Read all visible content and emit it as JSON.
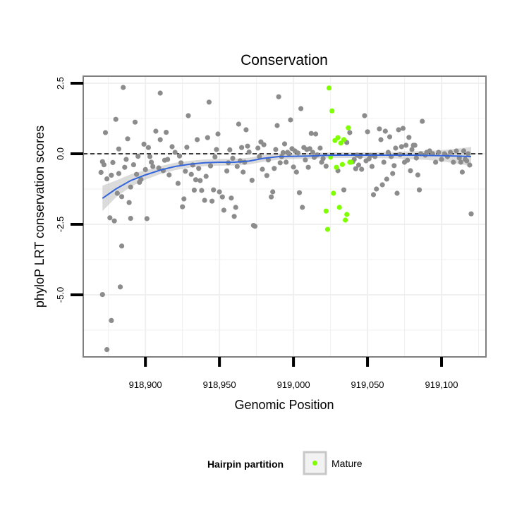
{
  "chart_data": {
    "type": "scatter",
    "title": "Conservation",
    "xlabel": "Genomic Position",
    "ylabel": "phyloP LRT conservation scores",
    "xlim": [
      918858,
      919130
    ],
    "ylim": [
      -7.2,
      2.75
    ],
    "x_ticks": [
      918900,
      918950,
      919000,
      919050,
      919100
    ],
    "x_tick_labels": [
      "918,900",
      "918,950",
      "919,000",
      "919,050",
      "919,100"
    ],
    "y_ticks": [
      -5.0,
      -2.5,
      0.0,
      2.5
    ],
    "y_tick_labels": [
      "-5.0",
      "-2.5",
      "0.0",
      "2.5"
    ],
    "reference_line": {
      "y": 0,
      "style": "dashed",
      "color": "#000000"
    },
    "grid": true,
    "legend": {
      "title": "Hairpin partition",
      "position": "bottom",
      "entries": [
        "Mature"
      ]
    },
    "colors": {
      "other": "#8c8c8c",
      "mature": "#7fff00",
      "smooth_line": "#3366dd",
      "ribbon": "#bdbdbd",
      "panel_border": "#7f7f7f",
      "grid": "#f0f0f0"
    },
    "series": [
      {
        "name": "",
        "color": "#8c8c8c",
        "points": [
          [
            918871,
            -4.99
          ],
          [
            918874,
            -6.94
          ],
          [
            918877,
            -5.91
          ],
          [
            918883,
            -4.72
          ],
          [
            918884,
            -3.27
          ],
          [
            918870,
            -0.66
          ],
          [
            918871,
            -0.28
          ],
          [
            918872,
            -0.39
          ],
          [
            918873,
            0.75
          ],
          [
            918874,
            -0.89
          ],
          [
            918876,
            -2.27
          ],
          [
            918877,
            -0.76
          ],
          [
            918878,
            -0.31
          ],
          [
            918879,
            -2.38
          ],
          [
            918880,
            1.22
          ],
          [
            918881,
            -1.4
          ],
          [
            918882,
            -0.7
          ],
          [
            918882,
            0.17
          ],
          [
            918884,
            -1.52
          ],
          [
            918885,
            2.35
          ],
          [
            918886,
            -0.48
          ],
          [
            918887,
            -0.2
          ],
          [
            918888,
            0.53
          ],
          [
            918889,
            -1.73
          ],
          [
            918890,
            -2.29
          ],
          [
            918890,
            -1.18
          ],
          [
            918892,
            -0.39
          ],
          [
            918893,
            1.12
          ],
          [
            918894,
            -0.73
          ],
          [
            918895,
            -0.09
          ],
          [
            918896,
            -1.01
          ],
          [
            918897,
            -0.91
          ],
          [
            918899,
            0.34
          ],
          [
            918900,
            -0.56
          ],
          [
            918901,
            -2.3
          ],
          [
            918902,
            0.22
          ],
          [
            918903,
            -0.1
          ],
          [
            918904,
            -0.3
          ],
          [
            918905,
            -0.45
          ],
          [
            918907,
            0.8
          ],
          [
            918909,
            -0.5
          ],
          [
            918910,
            0.5
          ],
          [
            918910,
            2.15
          ],
          [
            918912,
            -0.6
          ],
          [
            918913,
            -0.23
          ],
          [
            918914,
            0.76
          ],
          [
            918915,
            -0.2
          ],
          [
            918916,
            -0.75
          ],
          [
            918918,
            0.25
          ],
          [
            918920,
            0.05
          ],
          [
            918922,
            -1.05
          ],
          [
            918923,
            -0.08
          ],
          [
            918924,
            -0.32
          ],
          [
            918925,
            -1.88
          ],
          [
            918926,
            -1.6
          ],
          [
            918927,
            -0.62
          ],
          [
            918928,
            0.23
          ],
          [
            918929,
            1.35
          ],
          [
            918931,
            -0.73
          ],
          [
            918932,
            -0.4
          ],
          [
            918933,
            -1.29
          ],
          [
            918934,
            -0.92
          ],
          [
            918935,
            0.5
          ],
          [
            918936,
            -0.52
          ],
          [
            918937,
            -0.95
          ],
          [
            918938,
            -1.3
          ],
          [
            918940,
            -1.65
          ],
          [
            918941,
            -0.8
          ],
          [
            918942,
            0.57
          ],
          [
            918943,
            1.83
          ],
          [
            918944,
            -0.43
          ],
          [
            918945,
            -1.68
          ],
          [
            918946,
            -1.28
          ],
          [
            918947,
            -0.11
          ],
          [
            918948,
            0.15
          ],
          [
            918949,
            0.7
          ],
          [
            918950,
            -1.35
          ],
          [
            918952,
            -1.53
          ],
          [
            918953,
            -2.0
          ],
          [
            918955,
            -0.61
          ],
          [
            918956,
            -0.32
          ],
          [
            918957,
            0.14
          ],
          [
            918958,
            -1.57
          ],
          [
            918959,
            -0.16
          ],
          [
            918960,
            -2.22
          ],
          [
            918961,
            -1.9
          ],
          [
            918962,
            -0.45
          ],
          [
            918963,
            1.05
          ],
          [
            918964,
            -0.25
          ],
          [
            918965,
            0.22
          ],
          [
            918966,
            -0.65
          ],
          [
            918967,
            -0.3
          ],
          [
            918968,
            0.85
          ],
          [
            918969,
            0.27
          ],
          [
            918970,
            0.06
          ],
          [
            918972,
            -0.94
          ],
          [
            918973,
            -2.54
          ],
          [
            918974,
            -2.57
          ],
          [
            918976,
            0.2
          ],
          [
            918977,
            -0.1
          ],
          [
            918978,
            0.42
          ],
          [
            918979,
            -0.55
          ],
          [
            918980,
            0.32
          ],
          [
            918982,
            -0.77
          ],
          [
            918983,
            -0.22
          ],
          [
            918985,
            -1.53
          ],
          [
            918986,
            -1.35
          ],
          [
            918987,
            -0.52
          ],
          [
            918988,
            0.15
          ],
          [
            918989,
            1.0
          ],
          [
            918990,
            2.02
          ],
          [
            918991,
            -0.32
          ],
          [
            918992,
            -0.1
          ],
          [
            918993,
            0.04
          ],
          [
            918994,
            0.35
          ],
          [
            918995,
            -0.3
          ],
          [
            918996,
            0.05
          ],
          [
            918997,
            0.0
          ],
          [
            918998,
            1.2
          ],
          [
            918999,
            0.18
          ],
          [
            919000,
            -0.47
          ],
          [
            919001,
            0.1
          ],
          [
            919002,
            -0.65
          ],
          [
            919003,
            0.03
          ],
          [
            919004,
            -1.38
          ],
          [
            919005,
            1.6
          ],
          [
            919006,
            -1.9
          ],
          [
            919007,
            0.22
          ],
          [
            919008,
            -0.22
          ],
          [
            919009,
            0.15
          ],
          [
            919010,
            -0.48
          ],
          [
            919011,
            0.18
          ],
          [
            919012,
            0.72
          ],
          [
            919013,
            0.05
          ],
          [
            919014,
            -0.13
          ],
          [
            919015,
            0.7
          ],
          [
            919016,
            -0.04
          ],
          [
            919018,
            0.2
          ],
          [
            919019,
            -0.3
          ],
          [
            919020,
            -0.17
          ],
          [
            919022,
            -0.44
          ],
          [
            919030,
            -0.6
          ],
          [
            919034,
            -1.28
          ],
          [
            919036,
            0.4
          ],
          [
            919038,
            0.75
          ],
          [
            919040,
            -0.28
          ],
          [
            919041,
            -0.2
          ],
          [
            919042,
            -0.53
          ],
          [
            919043,
            -0.05
          ],
          [
            919044,
            -0.4
          ],
          [
            919045,
            -0.1
          ],
          [
            919046,
            -0.55
          ],
          [
            919048,
            1.35
          ],
          [
            919049,
            -0.25
          ],
          [
            919050,
            0.78
          ],
          [
            919051,
            -0.18
          ],
          [
            919052,
            -0.06
          ],
          [
            919053,
            -0.45
          ],
          [
            919054,
            -1.45
          ],
          [
            919055,
            -0.1
          ],
          [
            919056,
            -1.25
          ],
          [
            919058,
            0.88
          ],
          [
            919059,
            0.5
          ],
          [
            919060,
            -1.1
          ],
          [
            919061,
            -0.3
          ],
          [
            919062,
            0.8
          ],
          [
            919063,
            -0.9
          ],
          [
            919064,
            0.05
          ],
          [
            919065,
            0.6
          ],
          [
            919066,
            -0.1
          ],
          [
            919067,
            -0.7
          ],
          [
            919068,
            -0.42
          ],
          [
            919069,
            0.2
          ],
          [
            919070,
            -1.4
          ],
          [
            919071,
            0.85
          ],
          [
            919072,
            -0.03
          ],
          [
            919073,
            0.25
          ],
          [
            919074,
            0.9
          ],
          [
            919075,
            -0.3
          ],
          [
            919076,
            0.3
          ],
          [
            919077,
            -0.23
          ],
          [
            919078,
            0.58
          ],
          [
            919079,
            -0.6
          ],
          [
            919080,
            0.15
          ],
          [
            919081,
            0.3
          ],
          [
            919082,
            0.3
          ],
          [
            919083,
            -0.15
          ],
          [
            919084,
            -0.75
          ],
          [
            919085,
            -1.28
          ],
          [
            919086,
            0.0
          ],
          [
            919087,
            1.15
          ],
          [
            919089,
            -0.05
          ],
          [
            919090,
            0.05
          ],
          [
            919092,
            0.1
          ],
          [
            919094,
            0.0
          ],
          [
            919096,
            -0.3
          ],
          [
            919098,
            0.05
          ],
          [
            919100,
            -0.2
          ],
          [
            919102,
            0.0
          ],
          [
            919104,
            -0.1
          ],
          [
            919106,
            0.05
          ],
          [
            919108,
            -0.3
          ],
          [
            919110,
            0.1
          ],
          [
            919112,
            -0.15
          ],
          [
            919113,
            -0.3
          ],
          [
            919114,
            -0.65
          ],
          [
            919115,
            0.1
          ],
          [
            919116,
            -0.2
          ],
          [
            919117,
            -0.25
          ],
          [
            919118,
            0.0
          ],
          [
            919119,
            -0.4
          ],
          [
            919120,
            -2.13
          ]
        ]
      },
      {
        "name": "Mature",
        "color": "#7fff00",
        "points": [
          [
            919022,
            -2.03
          ],
          [
            919023,
            -2.68
          ],
          [
            919024,
            2.33
          ],
          [
            919025,
            -0.12
          ],
          [
            919026,
            1.52
          ],
          [
            919027,
            -1.4
          ],
          [
            919028,
            0.47
          ],
          [
            919029,
            -0.48
          ],
          [
            919030,
            0.57
          ],
          [
            919031,
            -1.9
          ],
          [
            919032,
            0.38
          ],
          [
            919033,
            -0.38
          ],
          [
            919034,
            0.5
          ],
          [
            919035,
            -2.35
          ],
          [
            919036,
            -2.15
          ],
          [
            919037,
            0.92
          ],
          [
            919038,
            -0.3
          ],
          [
            919039,
            -0.3
          ]
        ]
      }
    ],
    "smooth_curve": [
      [
        918871,
        -1.58
      ],
      [
        918880,
        -1.25
      ],
      [
        918890,
        -0.95
      ],
      [
        918900,
        -0.75
      ],
      [
        918910,
        -0.58
      ],
      [
        918920,
        -0.45
      ],
      [
        918930,
        -0.37
      ],
      [
        918940,
        -0.32
      ],
      [
        918950,
        -0.3
      ],
      [
        918960,
        -0.3
      ],
      [
        918970,
        -0.26
      ],
      [
        918980,
        -0.16
      ],
      [
        918990,
        -0.1
      ],
      [
        919000,
        -0.09
      ],
      [
        919010,
        -0.08
      ],
      [
        919020,
        -0.06
      ],
      [
        919030,
        -0.05
      ],
      [
        919040,
        -0.05
      ],
      [
        919050,
        -0.05
      ],
      [
        919060,
        -0.05
      ],
      [
        919070,
        -0.05
      ],
      [
        919080,
        -0.05
      ],
      [
        919090,
        -0.06
      ],
      [
        919100,
        -0.07
      ],
      [
        919110,
        -0.08
      ],
      [
        919120,
        -0.1
      ]
    ],
    "ribbon_halfwidth": [
      0.45,
      0.3,
      0.22,
      0.17,
      0.14,
      0.13,
      0.12,
      0.12,
      0.12,
      0.12,
      0.12,
      0.12,
      0.11,
      0.1,
      0.1,
      0.1,
      0.1,
      0.1,
      0.1,
      0.11,
      0.12,
      0.14,
      0.16,
      0.2,
      0.26,
      0.34
    ]
  }
}
